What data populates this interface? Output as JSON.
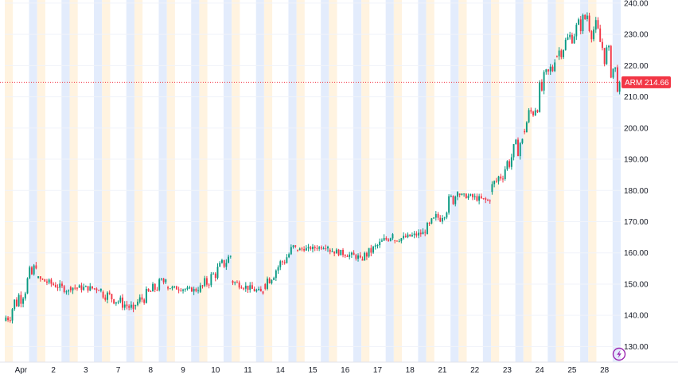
{
  "chart_data": {
    "type": "candlestick",
    "ticker": "ARM",
    "last_price": "214.66",
    "y_axis": {
      "range": [
        125,
        241
      ],
      "ticks": [
        "130.00",
        "140.00",
        "150.00",
        "160.00",
        "170.00",
        "180.00",
        "190.00",
        "200.00",
        "210.00",
        "220.00",
        "230.00",
        "240.00"
      ],
      "position": "right"
    },
    "x_axis": {
      "ticks": [
        "Apr",
        "2",
        "3",
        "7",
        "8",
        "9",
        "10",
        "11",
        "14",
        "15",
        "16",
        "17",
        "18",
        "21",
        "22",
        "23",
        "24",
        "25",
        "28"
      ]
    },
    "grid": true,
    "colors": {
      "up": "#089981",
      "down": "#f23645",
      "price_line": "#f23645",
      "session_pre": "#fff3e0",
      "session_post": "#e3ecfc",
      "grid": "#f0f3fa"
    },
    "sessions": [
      {
        "label": "Apr",
        "open": 138.2,
        "close": 155.0,
        "low": 136.5,
        "high": 158.5
      },
      {
        "label": "2",
        "open": 152.0,
        "close": 148.0,
        "low": 146.0,
        "high": 152.5
      },
      {
        "label": "3",
        "open": 149.0,
        "close": 148.5,
        "low": 146.5,
        "high": 152.0
      },
      {
        "label": "7",
        "open": 147.5,
        "close": 142.0,
        "low": 137.5,
        "high": 148.0
      },
      {
        "label": "8",
        "open": 143.0,
        "close": 151.5,
        "low": 140.0,
        "high": 152.0
      },
      {
        "label": "9",
        "open": 149.0,
        "close": 148.0,
        "low": 145.5,
        "high": 149.5
      },
      {
        "label": "10",
        "open": 147.5,
        "close": 159.0,
        "low": 146.5,
        "high": 159.5
      },
      {
        "label": "11",
        "open": 151.0,
        "close": 147.0,
        "low": 146.0,
        "high": 152.0
      },
      {
        "label": "14",
        "open": 150.0,
        "close": 162.0,
        "low": 148.0,
        "high": 163.0
      },
      {
        "label": "15",
        "open": 161.0,
        "close": 162.0,
        "low": 160.0,
        "high": 163.0
      },
      {
        "label": "16",
        "open": 161.0,
        "close": 158.5,
        "low": 156.0,
        "high": 161.5
      },
      {
        "label": "17",
        "open": 158.0,
        "close": 166.0,
        "low": 157.5,
        "high": 166.5
      },
      {
        "label": "18",
        "open": 164.0,
        "close": 166.5,
        "low": 163.0,
        "high": 168.0
      },
      {
        "label": "21",
        "open": 166.0,
        "close": 179.5,
        "low": 164.5,
        "high": 180.5
      },
      {
        "label": "22",
        "open": 179.0,
        "close": 176.5,
        "low": 173.5,
        "high": 179.0
      },
      {
        "label": "23",
        "open": 179.5,
        "close": 196.5,
        "low": 178.0,
        "high": 197.0
      },
      {
        "label": "24",
        "open": 199.0,
        "close": 221.0,
        "low": 198.0,
        "high": 223.0
      },
      {
        "label": "25",
        "open": 223.0,
        "close": 236.0,
        "low": 221.0,
        "high": 238.0
      },
      {
        "label": "28",
        "open": 236.0,
        "close": 214.66,
        "low": 210.5,
        "high": 238.5
      }
    ]
  }
}
